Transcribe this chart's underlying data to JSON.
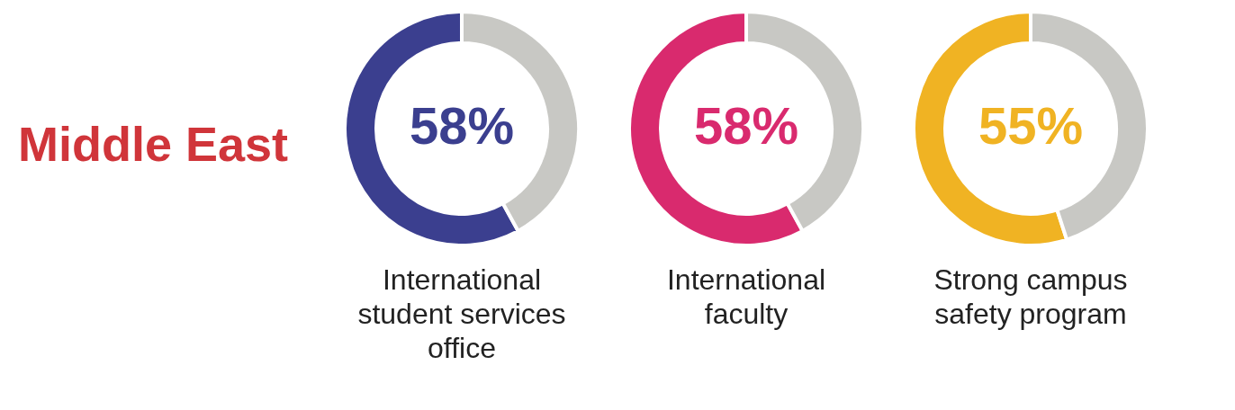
{
  "chart_data": [
    {
      "type": "other",
      "title": "Middle East"
    },
    {
      "type": "donut",
      "xlabel": "International student services office",
      "categories": [
        null,
        null
      ],
      "values": [
        58,
        42
      ],
      "colors": [
        "#3b3f8f",
        "#c8c8c4"
      ],
      "annotations": [
        "58%"
      ]
    },
    {
      "type": "donut",
      "xlabel": "International faculty",
      "categories": [
        null,
        null
      ],
      "values": [
        58,
        42
      ],
      "colors": [
        "#d92a6e",
        "#c8c8c4"
      ],
      "annotations": [
        "58%"
      ]
    },
    {
      "type": "donut",
      "xlabel": "Strong campus safety program",
      "categories": [
        null,
        null
      ],
      "values": [
        55,
        45
      ],
      "colors": [
        "#f0b323",
        "#c8c8c4"
      ],
      "annotations": [
        "55%"
      ]
    }
  ]
}
